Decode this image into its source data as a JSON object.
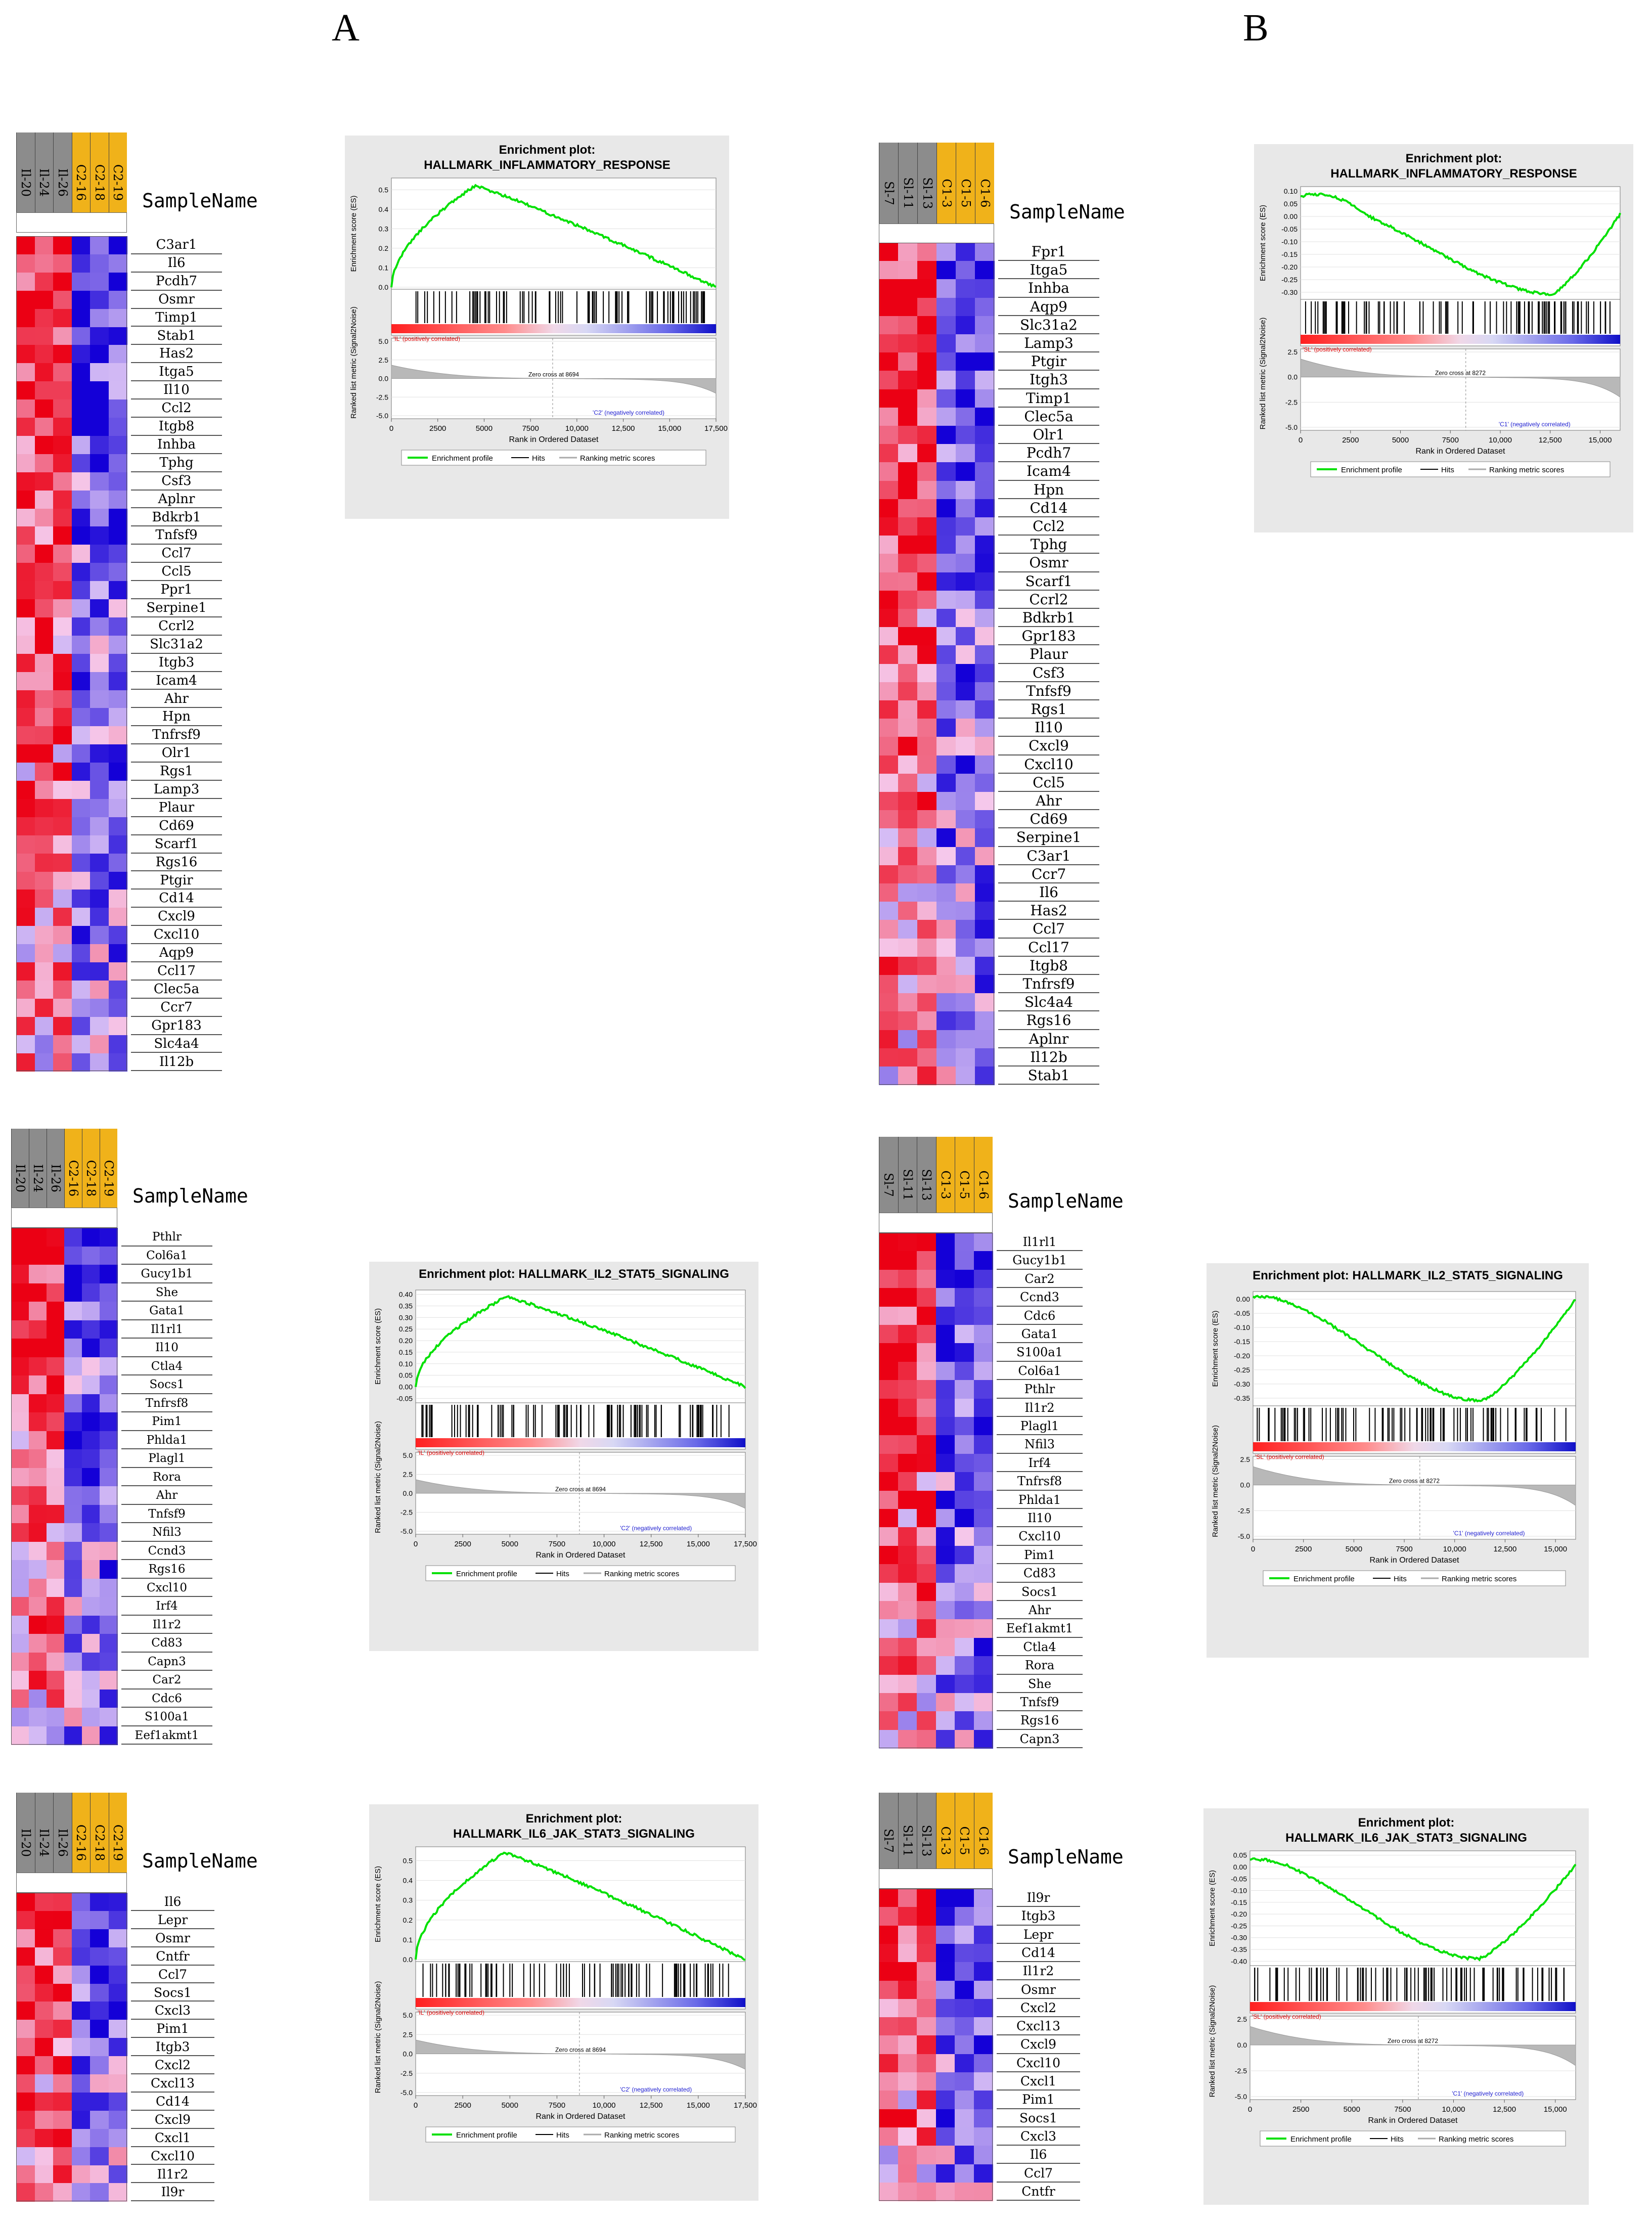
{
  "panels": {
    "a": "A",
    "b": "B"
  },
  "heatmaps": [
    {
      "id": "hmA1",
      "samples": [
        "Il-20",
        "Il-24",
        "Il-26",
        "C2-16",
        "C2-18",
        "C2-19"
      ],
      "sample_header": "SampleName",
      "genes": [
        "C3ar1",
        "Il6",
        "Pcdh7",
        "Osmr",
        "Timp1",
        "Stab1",
        "Has2",
        "Itga5",
        "Il10",
        "Ccl2",
        "Itgb8",
        "Inhba",
        "Tphg",
        "Csf3",
        "Aplnr",
        "Bdkrb1",
        "Tnfsf9",
        "Ccl7",
        "Ccl5",
        "Ppr1",
        "Serpine1",
        "Ccrl2",
        "Slc31a2",
        "Itgb3",
        "Icam4",
        "Ahr",
        "Hpn",
        "Tnfrsf9",
        "Olr1",
        "Rgs1",
        "Lamp3",
        "Plaur",
        "Cd69",
        "Scarf1",
        "Rgs16",
        "Ptgir",
        "Cd14",
        "Cxcl9",
        "Cxcl10",
        "Aqp9",
        "Ccl17",
        "Clec5a",
        "Ccr7",
        "Gpr183",
        "Slc4a4",
        "Il12b"
      ]
    },
    {
      "id": "hmB1",
      "samples": [
        "Sl-7",
        "Sl-11",
        "Sl-13",
        "C1-3",
        "C1-5",
        "C1-6"
      ],
      "sample_header": "SampleName",
      "genes": [
        "Fpr1",
        "Itga5",
        "Inhba",
        "Aqp9",
        "Slc31a2",
        "Lamp3",
        "Ptgir",
        "Itgh3",
        "Timp1",
        "Clec5a",
        "Olr1",
        "Pcdh7",
        "Icam4",
        "Hpn",
        "Cd14",
        "Ccl2",
        "Tphg",
        "Osmr",
        "Scarf1",
        "Ccrl2",
        "Bdkrb1",
        "Gpr183",
        "Plaur",
        "Csf3",
        "Tnfsf9",
        "Rgs1",
        "Il10",
        "Cxcl9",
        "Cxcl10",
        "Ccl5",
        "Ahr",
        "Cd69",
        "Serpine1",
        "C3ar1",
        "Ccr7",
        "Il6",
        "Has2",
        "Ccl7",
        "Ccl17",
        "Itgb8",
        "Tnfrsf9",
        "Slc4a4",
        "Rgs16",
        "Aplnr",
        "Il12b",
        "Stab1"
      ]
    },
    {
      "id": "hmA2",
      "samples": [
        "Il-20",
        "Il-24",
        "Il-26",
        "C2-16",
        "C2-18",
        "C2-19"
      ],
      "sample_header": "SampleName",
      "genes": [
        "Pthlr",
        "Col6a1",
        "Gucy1b1",
        "She",
        "Gata1",
        "Il1rl1",
        "Il10",
        "Ctla4",
        "Socs1",
        "Tnfrsf8",
        "Pim1",
        "Phlda1",
        "Plagl1",
        "Rora",
        "Ahr",
        "Tnfsf9",
        "Nfil3",
        "Ccnd3",
        "Rgs16",
        "Cxcl10",
        "Irf4",
        "Il1r2",
        "Cd83",
        "Capn3",
        "Car2",
        "Cdc6",
        "S100a1",
        "Eef1akmt1"
      ]
    },
    {
      "id": "hmB2",
      "samples": [
        "Sl-7",
        "Sl-11",
        "Sl-13",
        "C1-3",
        "C1-5",
        "C1-6"
      ],
      "sample_header": "SampleName",
      "genes": [
        "Il1rl1",
        "Gucy1b1",
        "Car2",
        "Ccnd3",
        "Cdc6",
        "Gata1",
        "S100a1",
        "Col6a1",
        "Pthlr",
        "Il1r2",
        "Plagl1",
        "Nfil3",
        "Irf4",
        "Tnfrsf8",
        "Phlda1",
        "Il10",
        "Cxcl10",
        "Pim1",
        "Cd83",
        "Socs1",
        "Ahr",
        "Eef1akmt1",
        "Ctla4",
        "Rora",
        "She",
        "Tnfsf9",
        "Rgs16",
        "Capn3"
      ]
    },
    {
      "id": "hmA3",
      "samples": [
        "Il-20",
        "Il-24",
        "Il-26",
        "C2-16",
        "C2-18",
        "C2-19"
      ],
      "sample_header": "SampleName",
      "genes": [
        "Il6",
        "Lepr",
        "Osmr",
        "Cntfr",
        "Ccl7",
        "Socs1",
        "Cxcl3",
        "Pim1",
        "Itgb3",
        "Cxcl2",
        "Cxcl13",
        "Cd14",
        "Cxcl9",
        "Cxcl1",
        "Cxcl10",
        "Il1r2",
        "Il9r"
      ]
    },
    {
      "id": "hmB3",
      "samples": [
        "Sl-7",
        "Sl-11",
        "Sl-13",
        "C1-3",
        "C1-5",
        "C1-6"
      ],
      "sample_header": "SampleName",
      "genes": [
        "Il9r",
        "Itgb3",
        "Lepr",
        "Cd14",
        "Il1r2",
        "Osmr",
        "Cxcl2",
        "Cxcl13",
        "Cxcl9",
        "Cxcl10",
        "Cxcl1",
        "Pim1",
        "Socs1",
        "Cxcl3",
        "Il6",
        "Ccl7",
        "Cntfr"
      ]
    }
  ],
  "gsea": [
    {
      "id": "gA1",
      "title_line1": "Enrichment plot:",
      "title_line2": "HALLMARK_INFLAMMATORY_RESPONSE",
      "es_ylabel": "Enrichment score (ES)",
      "rank_ylabel": "Ranked list metric (Signal2Noise)",
      "xlabel": "Rank in Ordered Dataset",
      "x_ticks": [
        "0",
        "2500",
        "5000",
        "7500",
        "10,000",
        "12,500",
        "15,000",
        "17,500"
      ],
      "es_ticks": [
        "0.5",
        "0.4",
        "0.3",
        "0.2",
        "0.1",
        "0.0"
      ],
      "rank_ticks": [
        "5.0",
        "2.5",
        "0.0",
        "-2.5",
        "-5.0"
      ],
      "pos_label": "'IL' (positively correlated)",
      "neg_label": "'C2' (negatively correlated)",
      "zero_cross": "Zero cross at 8694",
      "legend": [
        "Enrichment profile",
        "Hits",
        "Ranking metric scores"
      ],
      "chart_data": {
        "type": "line",
        "x_range": [
          0,
          17500
        ],
        "es_range": [
          0,
          0.55
        ],
        "peak_es": 0.52,
        "peak_rank": 4500,
        "end_es": 0.0,
        "zero_cross": 8694
      }
    },
    {
      "id": "gB1",
      "title_line1": "Enrichment plot:",
      "title_line2": "HALLMARK_INFLAMMATORY_RESPONSE",
      "es_ylabel": "Enrichment score (ES)",
      "rank_ylabel": "Ranked list metric (Signal2Noise)",
      "xlabel": "Rank in Ordered Dataset",
      "x_ticks": [
        "0",
        "2500",
        "5000",
        "7500",
        "10,000",
        "12,500",
        "15,000"
      ],
      "es_ticks": [
        "0.10",
        "0.05",
        "0.00",
        "-0.05",
        "-0.10",
        "-0.15",
        "-0.20",
        "-0.25",
        "-0.30"
      ],
      "rank_ticks": [
        "2.5",
        "0.0",
        "-2.5",
        "-5.0"
      ],
      "pos_label": "'SL' (positively correlated)",
      "neg_label": "'C1' (negatively correlated)",
      "zero_cross": "Zero cross at 8272",
      "legend": [
        "Enrichment profile",
        "Hits",
        "Ranking metric scores"
      ],
      "chart_data": {
        "type": "line",
        "x_range": [
          0,
          16000
        ],
        "es_range": [
          -0.32,
          0.11
        ],
        "peak_es": 0.08,
        "min_es": -0.31,
        "min_rank": 12500,
        "end_es": 0.01,
        "zero_cross": 8272
      }
    },
    {
      "id": "gA2",
      "title_line1": "Enrichment plot: HALLMARK_IL2_STAT5_SIGNALING",
      "title_line2": "",
      "es_ylabel": "Enrichment score (ES)",
      "rank_ylabel": "Ranked list metric (Signal2Noise)",
      "xlabel": "Rank in Ordered Dataset",
      "x_ticks": [
        "0",
        "2500",
        "5000",
        "7500",
        "10,000",
        "12,500",
        "15,000",
        "17,500"
      ],
      "es_ticks": [
        "0.40",
        "0.35",
        "0.30",
        "0.25",
        "0.20",
        "0.15",
        "0.10",
        "0.05",
        "0.00",
        "-0.05"
      ],
      "rank_ticks": [
        "5.0",
        "2.5",
        "0.0",
        "-2.5",
        "-5.0"
      ],
      "pos_label": "'IL' (positively correlated)",
      "neg_label": "'C2' (negatively correlated)",
      "zero_cross": "Zero cross at 8694",
      "legend": [
        "Enrichment profile",
        "Hits",
        "Ranking metric scores"
      ],
      "chart_data": {
        "type": "line",
        "x_range": [
          0,
          17500
        ],
        "es_range": [
          -0.06,
          0.41
        ],
        "peak_es": 0.39,
        "peak_rank": 4800,
        "end_es": 0.0,
        "zero_cross": 8694
      }
    },
    {
      "id": "gB2",
      "title_line1": "Enrichment plot: HALLMARK_IL2_STAT5_SIGNALING",
      "title_line2": "",
      "es_ylabel": "Enrichment score (ES)",
      "rank_ylabel": "Ranked list metric (Signal2Noise)",
      "xlabel": "Rank in Ordered Dataset",
      "x_ticks": [
        "0",
        "2500",
        "5000",
        "7500",
        "10,000",
        "12,500",
        "15,000"
      ],
      "es_ticks": [
        "0.00",
        "-0.05",
        "-0.10",
        "-0.15",
        "-0.20",
        "-0.25",
        "-0.30",
        "-0.35"
      ],
      "rank_ticks": [
        "2.5",
        "0.0",
        "-2.5",
        "-5.0"
      ],
      "pos_label": "'SL' (positively correlated)",
      "neg_label": "'C1' (negatively correlated)",
      "zero_cross": "Zero cross at 8272",
      "legend": [
        "Enrichment profile",
        "Hits",
        "Ranking metric scores"
      ],
      "chart_data": {
        "type": "line",
        "x_range": [
          0,
          16000
        ],
        "es_range": [
          -0.37,
          0.02
        ],
        "peak_es": 0.01,
        "min_es": -0.36,
        "min_rank": 11300,
        "end_es": 0.0,
        "zero_cross": 8272
      }
    },
    {
      "id": "gA3",
      "title_line1": "Enrichment plot:",
      "title_line2": "HALLMARK_IL6_JAK_STAT3_SIGNALING",
      "es_ylabel": "Enrichment score (ES)",
      "rank_ylabel": "Ranked list metric (Signal2Noise)",
      "xlabel": "Rank in Ordered Dataset",
      "x_ticks": [
        "0",
        "2500",
        "5000",
        "7500",
        "10,000",
        "12,500",
        "15,000",
        "17,500"
      ],
      "es_ticks": [
        "0.5",
        "0.4",
        "0.3",
        "0.2",
        "0.1",
        "0.0"
      ],
      "rank_ticks": [
        "5.0",
        "2.5",
        "0.0",
        "-2.5",
        "-5.0"
      ],
      "pos_label": "'IL' (positively correlated)",
      "neg_label": "'C2' (negatively correlated)",
      "zero_cross": "Zero cross at 8694",
      "legend": [
        "Enrichment profile",
        "Hits",
        "Ranking metric scores"
      ],
      "chart_data": {
        "type": "line",
        "x_range": [
          0,
          17500
        ],
        "es_range": [
          0,
          0.56
        ],
        "peak_es": 0.54,
        "peak_rank": 4700,
        "end_es": 0.0,
        "zero_cross": 8694
      }
    },
    {
      "id": "gB3",
      "title_line1": "Enrichment plot:",
      "title_line2": "HALLMARK_IL6_JAK_STAT3_SIGNALING",
      "es_ylabel": "Enrichment score (ES)",
      "rank_ylabel": "Ranked list metric (Signal2Noise)",
      "xlabel": "Rank in Ordered Dataset",
      "x_ticks": [
        "0",
        "2500",
        "5000",
        "7500",
        "10,000",
        "12,500",
        "15,000"
      ],
      "es_ticks": [
        "0.05",
        "0.00",
        "-0.05",
        "-0.10",
        "-0.15",
        "-0.20",
        "-0.25",
        "-0.30",
        "-0.35",
        "-0.40"
      ],
      "rank_ticks": [
        "2.5",
        "0.0",
        "-2.5",
        "-5.0"
      ],
      "pos_label": "'SL' (positively correlated)",
      "neg_label": "'C1' (negatively correlated)",
      "zero_cross": "Zero cross at 8272",
      "legend": [
        "Enrichment profile",
        "Hits",
        "Ranking metric scores"
      ],
      "chart_data": {
        "type": "line",
        "x_range": [
          0,
          16000
        ],
        "es_range": [
          -0.41,
          0.06
        ],
        "peak_es": 0.03,
        "min_es": -0.39,
        "min_rank": 11200,
        "end_es": 0.01,
        "zero_cross": 8272
      }
    }
  ]
}
